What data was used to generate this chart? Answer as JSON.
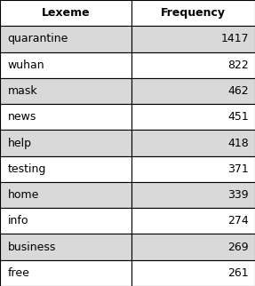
{
  "headers": [
    "Lexeme",
    "Frequency"
  ],
  "rows": [
    [
      "quarantine",
      "1417"
    ],
    [
      "wuhan",
      "822"
    ],
    [
      "mask",
      "462"
    ],
    [
      "news",
      "451"
    ],
    [
      "help",
      "418"
    ],
    [
      "testing",
      "371"
    ],
    [
      "home",
      "339"
    ],
    [
      "info",
      "274"
    ],
    [
      "business",
      "269"
    ],
    [
      "free",
      "261"
    ]
  ],
  "shaded_rows": [
    0,
    2,
    4,
    6,
    8
  ],
  "header_bg": "#ffffff",
  "shaded_bg": "#d9d9d9",
  "white_bg": "#ffffff",
  "outer_bg": "#ffffff",
  "col_split": 0.515,
  "header_fontsize": 9,
  "cell_fontsize": 9,
  "border_color": "#000000",
  "border_lw": 0.8
}
